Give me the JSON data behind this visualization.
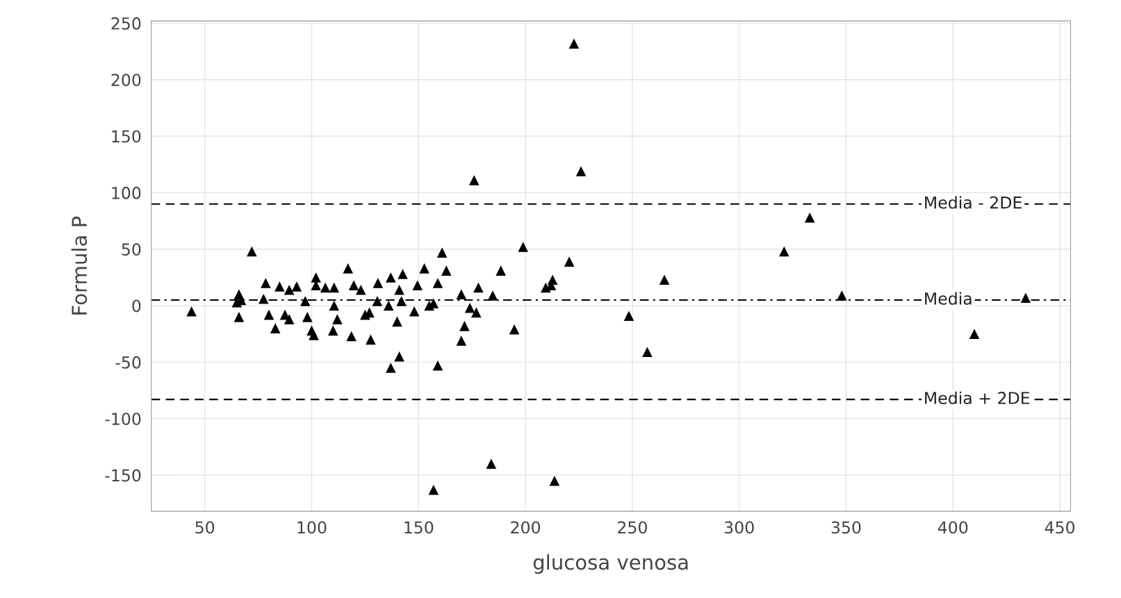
{
  "chart_data": {
    "type": "scatter",
    "xlabel": "glucosa venosa",
    "ylabel": "Formula P",
    "xlim": [
      25,
      455
    ],
    "ylim": [
      -182,
      252
    ],
    "xticks": [
      50,
      100,
      150,
      200,
      250,
      300,
      350,
      400,
      450
    ],
    "yticks": [
      -150,
      -100,
      -50,
      0,
      50,
      100,
      150,
      200,
      250
    ],
    "grid": true,
    "marker": "triangle",
    "series": [
      {
        "color": "#000000",
        "x": [
          43.8,
          72,
          66,
          65,
          66,
          67,
          78.5,
          77.5,
          85,
          93,
          89.5,
          80,
          83,
          87.5,
          89.5,
          97,
          98,
          100,
          101,
          102,
          102,
          106.4,
          110.5,
          110.5,
          112,
          110,
          117,
          119.7,
          123,
          131,
          118.6,
          127.6,
          127,
          125,
          130.7,
          137,
          142.6,
          141,
          136,
          142,
          140,
          141,
          137,
          152.7,
          149.5,
          148,
          155,
          157,
          161,
          163,
          159,
          159,
          170,
          178,
          174,
          177,
          171.5,
          170,
          198.9,
          220.5,
          188.5,
          184.7,
          194.8,
          209.5,
          212.7,
          212,
          248.4,
          257,
          265,
          222.7,
          176,
          226,
          333,
          321,
          348,
          434,
          410,
          157,
          184,
          213.6
        ],
        "values": [
          -5,
          48,
          10,
          3,
          -10,
          5,
          20,
          6,
          17,
          17,
          14,
          -8,
          -20,
          -8,
          -12,
          4,
          -10,
          -22,
          -26,
          25,
          18,
          16,
          16,
          0,
          -12,
          -22,
          33,
          18,
          14,
          20,
          -27,
          -30,
          -6,
          -8,
          4,
          25,
          28,
          14,
          0,
          4,
          -14,
          -45,
          -55,
          33,
          18,
          -5,
          0,
          2,
          47,
          31,
          20,
          -53,
          10,
          16,
          -2,
          -6,
          -18,
          -31,
          52,
          39,
          31,
          9,
          -21,
          16,
          23,
          18,
          -9,
          -41,
          23,
          232,
          111,
          119,
          78,
          48,
          9,
          7,
          -25,
          -163,
          -140,
          -155
        ]
      }
    ],
    "ref_lines": [
      {
        "axis": "y",
        "value": 90,
        "label": "Media - 2DE",
        "line_style": "dashed",
        "color": "#000000"
      },
      {
        "axis": "y",
        "value": 5,
        "label": "Media",
        "line_style": "dashdot",
        "color": "#000000"
      },
      {
        "axis": "y",
        "value": -83,
        "label": "Media + 2DE",
        "line_style": "dashed",
        "color": "#000000"
      }
    ]
  }
}
